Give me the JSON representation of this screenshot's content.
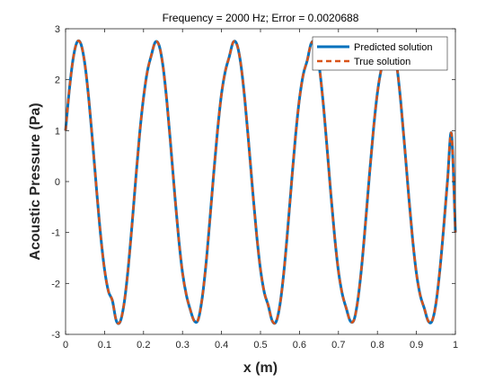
{
  "chart_data": {
    "type": "line",
    "title": "Frequency = 2000 Hz; Error = 0.0020688",
    "xlabel": "x (m)",
    "ylabel": "Acoustic Pressure (Pa)",
    "xlim": [
      0,
      1
    ],
    "ylim": [
      -3,
      3
    ],
    "grid": false,
    "legend_position": "top-right",
    "x_ticks": [
      "0",
      "0.1",
      "0.2",
      "0.3",
      "0.4",
      "0.5",
      "0.6",
      "0.7",
      "0.8",
      "0.9",
      "1"
    ],
    "y_ticks": [
      "-3",
      "-2",
      "-1",
      "0",
      "1",
      "2",
      "3"
    ],
    "x_tick_values": [
      0,
      0.1,
      0.2,
      0.3,
      0.4,
      0.5,
      0.6,
      0.7,
      0.8,
      0.9,
      1
    ],
    "y_tick_values": [
      -3,
      -2,
      -1,
      0,
      1,
      2,
      3
    ],
    "series": [
      {
        "name": "Predicted solution",
        "color": "#0072BD",
        "style": "solid",
        "x": [
          0,
          0.01,
          0.02,
          0.03,
          0.04,
          0.05,
          0.06,
          0.07,
          0.08,
          0.09,
          0.1,
          0.11,
          0.12,
          0.13,
          0.14,
          0.15,
          0.16,
          0.17,
          0.18,
          0.19,
          0.2,
          0.21,
          0.22,
          0.23,
          0.24,
          0.25,
          0.26,
          0.27,
          0.28,
          0.29,
          0.3,
          0.31,
          0.32,
          0.33,
          0.34,
          0.35,
          0.36,
          0.37,
          0.38,
          0.39,
          0.4,
          0.41,
          0.42,
          0.43,
          0.44,
          0.45,
          0.46,
          0.47,
          0.48,
          0.49,
          0.5,
          0.51,
          0.52,
          0.53,
          0.54,
          0.55,
          0.56,
          0.57,
          0.58,
          0.59,
          0.6,
          0.61,
          0.62,
          0.63,
          0.64,
          0.65,
          0.66,
          0.67,
          0.68,
          0.69,
          0.7,
          0.71,
          0.72,
          0.73,
          0.74,
          0.75,
          0.76,
          0.77,
          0.78,
          0.79,
          0.8,
          0.81,
          0.82,
          0.83,
          0.84,
          0.85,
          0.86,
          0.87,
          0.88,
          0.89,
          0.9,
          0.91,
          0.92,
          0.93,
          0.94,
          0.95,
          0.96,
          0.97,
          0.98,
          0.99,
          1
        ],
        "y": [
          1.0,
          1.825,
          2.44,
          2.744,
          2.687,
          2.28,
          1.588,
          0.717,
          -0.205,
          -1.057,
          -1.729,
          -2.157,
          -2.333,
          -2.73,
          -2.753,
          -2.401,
          -1.75,
          -0.893,
          0.045,
          0.934,
          1.65,
          2.17,
          2.479,
          2.736,
          2.671,
          2.261,
          1.561,
          0.682,
          -0.247,
          -1.106,
          -1.79,
          -2.233,
          -2.518,
          -2.735,
          -2.715,
          -2.313,
          -1.64,
          -0.768,
          0.158,
          1.017,
          1.719,
          2.175,
          2.453,
          2.737,
          2.682,
          2.28,
          1.594,
          0.733,
          -0.184,
          -1.036,
          -1.725,
          -2.184,
          -2.434,
          -2.733,
          -2.752,
          -2.415,
          -1.775,
          -0.925,
          0.01,
          0.901,
          1.624,
          2.112,
          2.379,
          2.713,
          2.7,
          2.299,
          1.612,
          0.734,
          -0.196,
          -1.062,
          -1.759,
          -2.213,
          -2.487,
          -2.733,
          -2.715,
          -2.311,
          -1.634,
          -0.757,
          0.173,
          1.038,
          1.744,
          2.213,
          2.502,
          2.737,
          2.675,
          2.254,
          1.551,
          0.671,
          -0.258,
          -1.116,
          -1.799,
          -2.238,
          -2.483,
          -2.734,
          -2.742,
          -2.399,
          -1.752,
          -0.896,
          0.043,
          0.935,
          -1.0
        ]
      },
      {
        "name": "True solution",
        "color": "#D95319",
        "style": "dashed",
        "x": [
          0,
          0.01,
          0.02,
          0.03,
          0.04,
          0.05,
          0.06,
          0.07,
          0.08,
          0.09,
          0.1,
          0.11,
          0.12,
          0.13,
          0.14,
          0.15,
          0.16,
          0.17,
          0.18,
          0.19,
          0.2,
          0.21,
          0.22,
          0.23,
          0.24,
          0.25,
          0.26,
          0.27,
          0.28,
          0.29,
          0.3,
          0.31,
          0.32,
          0.33,
          0.34,
          0.35,
          0.36,
          0.37,
          0.38,
          0.39,
          0.4,
          0.41,
          0.42,
          0.43,
          0.44,
          0.45,
          0.46,
          0.47,
          0.48,
          0.49,
          0.5,
          0.51,
          0.52,
          0.53,
          0.54,
          0.55,
          0.56,
          0.57,
          0.58,
          0.59,
          0.6,
          0.61,
          0.62,
          0.63,
          0.64,
          0.65,
          0.66,
          0.67,
          0.68,
          0.69,
          0.7,
          0.71,
          0.72,
          0.73,
          0.74,
          0.75,
          0.76,
          0.77,
          0.78,
          0.79,
          0.8,
          0.81,
          0.82,
          0.83,
          0.84,
          0.85,
          0.86,
          0.87,
          0.88,
          0.89,
          0.9,
          0.91,
          0.92,
          0.93,
          0.94,
          0.95,
          0.96,
          0.97,
          0.98,
          0.99,
          1
        ],
        "y": [
          1.0,
          1.825,
          2.44,
          2.744,
          2.687,
          2.28,
          1.588,
          0.717,
          -0.205,
          -1.057,
          -1.729,
          -2.157,
          -2.333,
          -2.73,
          -2.753,
          -2.401,
          -1.75,
          -0.893,
          0.045,
          0.934,
          1.65,
          2.17,
          2.479,
          2.736,
          2.671,
          2.261,
          1.561,
          0.682,
          -0.247,
          -1.106,
          -1.79,
          -2.233,
          -2.518,
          -2.735,
          -2.715,
          -2.313,
          -1.64,
          -0.768,
          0.158,
          1.017,
          1.719,
          2.175,
          2.453,
          2.737,
          2.682,
          2.28,
          1.594,
          0.733,
          -0.184,
          -1.036,
          -1.725,
          -2.184,
          -2.434,
          -2.733,
          -2.752,
          -2.415,
          -1.775,
          -0.925,
          0.01,
          0.901,
          1.624,
          2.112,
          2.379,
          2.713,
          2.7,
          2.299,
          1.612,
          0.734,
          -0.196,
          -1.062,
          -1.759,
          -2.213,
          -2.487,
          -2.733,
          -2.715,
          -2.311,
          -1.634,
          -0.757,
          0.173,
          1.038,
          1.744,
          2.213,
          2.502,
          2.737,
          2.675,
          2.254,
          1.551,
          0.671,
          -0.258,
          -1.116,
          -1.799,
          -2.238,
          -2.483,
          -2.734,
          -2.742,
          -2.399,
          -1.752,
          -0.896,
          0.043,
          0.935,
          -1.0
        ]
      }
    ]
  }
}
